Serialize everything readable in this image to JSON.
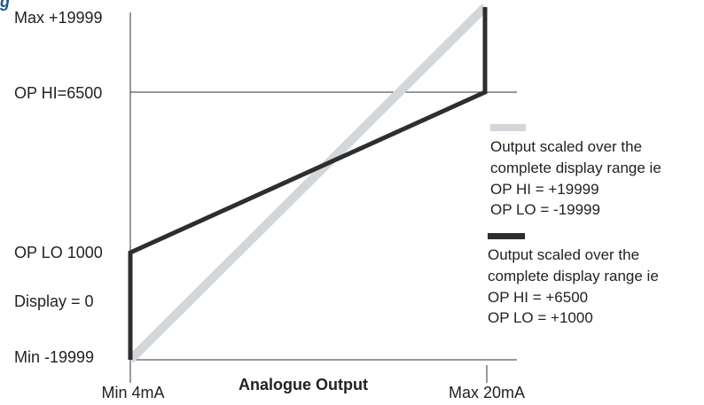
{
  "header": {
    "title_fragment": "g"
  },
  "chart_data": {
    "type": "line",
    "xlabel": "Analogue Output",
    "x_ticks": [
      "Min 4mA",
      "Max 20mA"
    ],
    "y_ticks": [
      "Max +19999",
      "OP HI=6500",
      "OP LO 1000",
      "Display = 0",
      "Min -19999"
    ],
    "x": [
      4,
      20
    ],
    "series": [
      {
        "name": "Output scaled over the complete display range ie",
        "op_hi": "OP HI  = +19999",
        "op_lo": "OP LO = -19999",
        "color": "#d3d6da",
        "points": [
          [
            4,
            -19999
          ],
          [
            20,
            19999
          ]
        ]
      },
      {
        "name": "Output scaled over the complete display range ie",
        "op_hi": "OP HI  = +6500",
        "op_lo": "OP LO = +1000",
        "color": "#2e2e2e",
        "points": [
          [
            4,
            -19999
          ],
          [
            4,
            1000
          ],
          [
            20,
            6500
          ],
          [
            20,
            19999
          ]
        ]
      }
    ]
  }
}
